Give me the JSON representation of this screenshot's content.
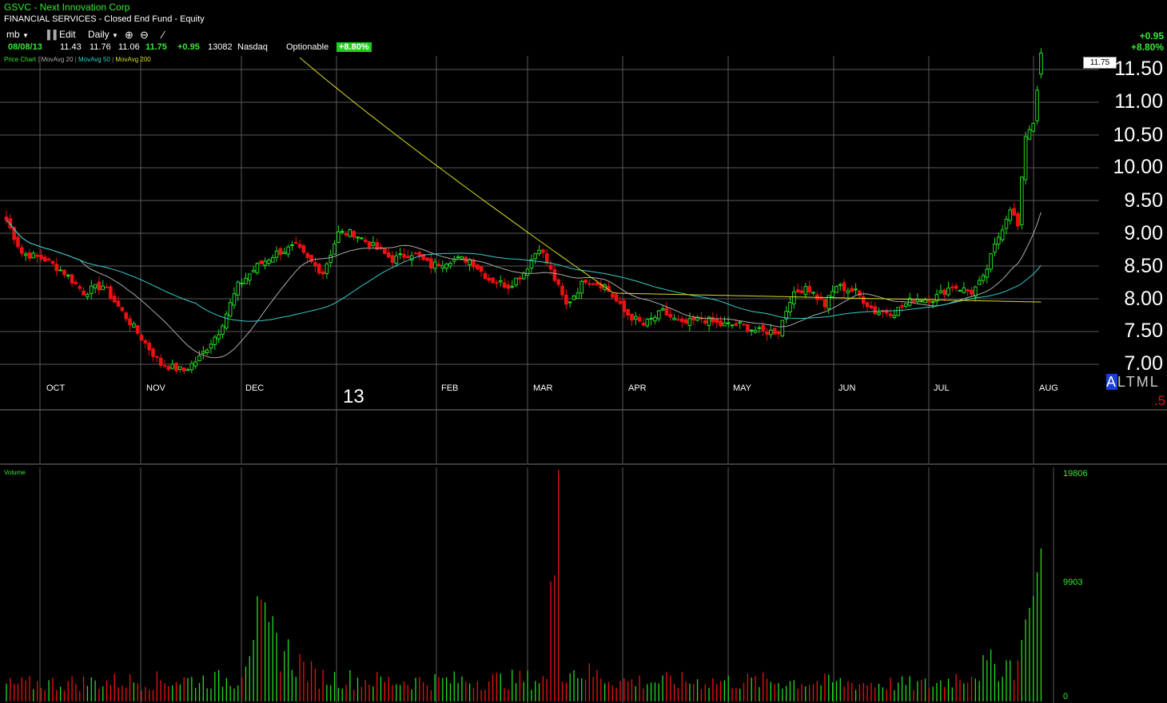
{
  "window": {
    "title": "GSVC - Next Innovation Corp",
    "subtitle": "FINANCIAL SERVICES - Closed End Fund - Equity"
  },
  "toolbar": {
    "account": "mb",
    "edit_label": "Edit",
    "interval": "Daily"
  },
  "quote": {
    "date": "08/08/13",
    "open": "11.43",
    "high": "11.76",
    "low": "11.06",
    "last": "11.75",
    "change": "+0.95",
    "volume": "13082",
    "exchange": "Nasdaq",
    "optionable": "Optionable",
    "change_pct": "+8.80%"
  },
  "right_panel": {
    "change": "+0.95",
    "change_pct": "+8.80%",
    "last_box": "11.75",
    "scale_buttons": [
      "A",
      "L",
      "T",
      "M",
      "L"
    ],
    "selected_scale": "A",
    "misc": ".5"
  },
  "legend": {
    "price_chart": "Price Chart",
    "ma20": "MovAvg 20",
    "ma50": "MovAvg 50",
    "ma200": "MovAvg 200",
    "volume": "Volume"
  },
  "colors": {
    "up": "#22dd22",
    "down": "#ee1111",
    "ma20": "#aaaaaa",
    "ma50": "#33cccc",
    "ma200": "#dddd22",
    "grid": "#5a5a5a"
  },
  "chart_data": {
    "type": "candlestick",
    "ylim": [
      6.75,
      11.75
    ],
    "y_ticks": [
      "7.00",
      "7.50",
      "8.00",
      "8.50",
      "9.00",
      "9.50",
      "10.00",
      "10.50",
      "11.00",
      "11.50"
    ],
    "months": [
      "OCT",
      "NOV",
      "DEC",
      "13",
      "FEB",
      "MAR",
      "APR",
      "MAY",
      "JUN",
      "JUL",
      "AUG"
    ],
    "volume_ticks": [
      "19806",
      "9903",
      "0"
    ],
    "volume_max": 19806,
    "price_anchors": [
      [
        0,
        9.2
      ],
      [
        4,
        8.7
      ],
      [
        10,
        8.6
      ],
      [
        15,
        8.4
      ],
      [
        20,
        8.1
      ],
      [
        25,
        8.2
      ],
      [
        30,
        7.8
      ],
      [
        35,
        7.4
      ],
      [
        40,
        7.0
      ],
      [
        46,
        6.9
      ],
      [
        50,
        7.1
      ],
      [
        55,
        7.5
      ],
      [
        60,
        8.2
      ],
      [
        65,
        8.5
      ],
      [
        70,
        8.7
      ],
      [
        75,
        8.8
      ],
      [
        78,
        8.6
      ],
      [
        82,
        8.4
      ],
      [
        86,
        9.0
      ],
      [
        90,
        9.0
      ],
      [
        95,
        8.8
      ],
      [
        100,
        8.6
      ],
      [
        105,
        8.7
      ],
      [
        110,
        8.5
      ],
      [
        115,
        8.6
      ],
      [
        120,
        8.6
      ],
      [
        125,
        8.3
      ],
      [
        130,
        8.2
      ],
      [
        134,
        8.4
      ],
      [
        138,
        8.8
      ],
      [
        142,
        8.3
      ],
      [
        145,
        7.9
      ],
      [
        150,
        8.3
      ],
      [
        155,
        8.2
      ],
      [
        160,
        7.8
      ],
      [
        165,
        7.6
      ],
      [
        170,
        7.8
      ],
      [
        175,
        7.6
      ],
      [
        180,
        7.7
      ],
      [
        185,
        7.6
      ],
      [
        190,
        7.6
      ],
      [
        195,
        7.5
      ],
      [
        200,
        7.5
      ],
      [
        203,
        8.0
      ],
      [
        207,
        8.2
      ],
      [
        212,
        7.9
      ],
      [
        215,
        8.2
      ],
      [
        220,
        8.1
      ],
      [
        225,
        7.8
      ],
      [
        230,
        7.8
      ],
      [
        235,
        8.0
      ],
      [
        240,
        8.0
      ],
      [
        245,
        8.2
      ],
      [
        250,
        8.1
      ],
      [
        253,
        8.3
      ],
      [
        256,
        8.8
      ],
      [
        260,
        9.4
      ],
      [
        262,
        9.1
      ],
      [
        264,
        10.5
      ],
      [
        266,
        10.7
      ],
      [
        268,
        11.75
      ]
    ],
    "volume_anchors": [
      [
        0,
        1500
      ],
      [
        30,
        1800
      ],
      [
        60,
        2000
      ],
      [
        64,
        7000
      ],
      [
        80,
        2200
      ],
      [
        100,
        1800
      ],
      [
        140,
        2000
      ],
      [
        143,
        19806
      ],
      [
        144,
        3000
      ],
      [
        160,
        1800
      ],
      [
        200,
        1800
      ],
      [
        240,
        1500
      ],
      [
        255,
        3200
      ],
      [
        262,
        3500
      ],
      [
        264,
        7000
      ],
      [
        266,
        9000
      ],
      [
        268,
        13082
      ]
    ]
  }
}
